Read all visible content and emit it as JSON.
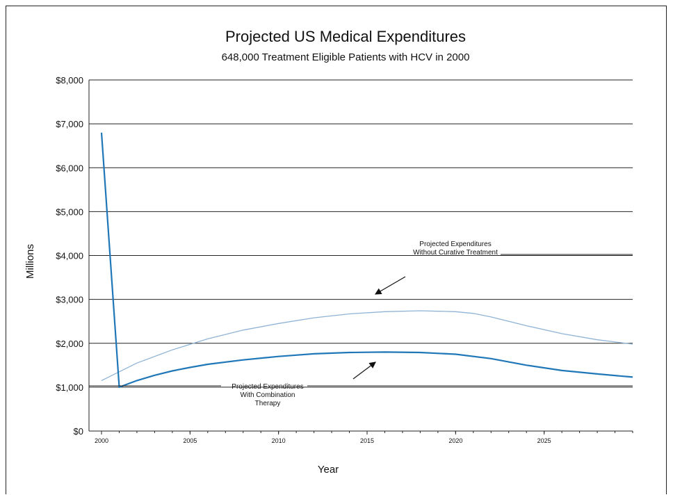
{
  "chart_data": {
    "type": "line",
    "title": "Projected US Medical Expenditures",
    "subtitle": "648,000 Treatment Eligible Patients with HCV in 2000",
    "xlabel": "Year",
    "ylabel": "Millions",
    "xlim": [
      2000,
      2030
    ],
    "ylim": [
      0,
      8000
    ],
    "x_ticks": [
      2000,
      2005,
      2010,
      2015,
      2020,
      2025
    ],
    "y_ticks": [
      0,
      1000,
      2000,
      3000,
      4000,
      5000,
      6000,
      7000,
      8000
    ],
    "y_tick_labels": [
      "$0",
      "$1,000",
      "$2,000",
      "$3,000",
      "$4,000",
      "$5,000",
      "$6,000",
      "$7,000",
      "$8,000"
    ],
    "grid": true,
    "series": [
      {
        "key": "without",
        "color": "#8fb3d6",
        "x": [
          2000,
          2002,
          2004,
          2006,
          2008,
          2010,
          2012,
          2014,
          2016,
          2018,
          2020,
          2021,
          2022,
          2024,
          2026,
          2028,
          2030
        ],
        "values": [
          1150,
          1550,
          1850,
          2100,
          2300,
          2450,
          2580,
          2670,
          2720,
          2740,
          2720,
          2680,
          2600,
          2400,
          2220,
          2080,
          1980
        ]
      },
      {
        "key": "with",
        "color": "#1f77b8",
        "x": [
          2000,
          2001,
          2002,
          2003,
          2004,
          2005,
          2006,
          2008,
          2010,
          2012,
          2014,
          2016,
          2018,
          2020,
          2022,
          2024,
          2026,
          2028,
          2030
        ],
        "values": [
          6800,
          1000,
          1150,
          1270,
          1370,
          1450,
          1520,
          1620,
          1700,
          1760,
          1790,
          1800,
          1790,
          1750,
          1650,
          1500,
          1380,
          1300,
          1230
        ]
      }
    ],
    "annotations": [
      {
        "key": "without",
        "lines": [
          "Projected Expenditures",
          "Without Curative Treatment"
        ]
      },
      {
        "key": "with",
        "lines": [
          "Projected Expenditures",
          "With Combination",
          "Therapy"
        ]
      }
    ]
  }
}
